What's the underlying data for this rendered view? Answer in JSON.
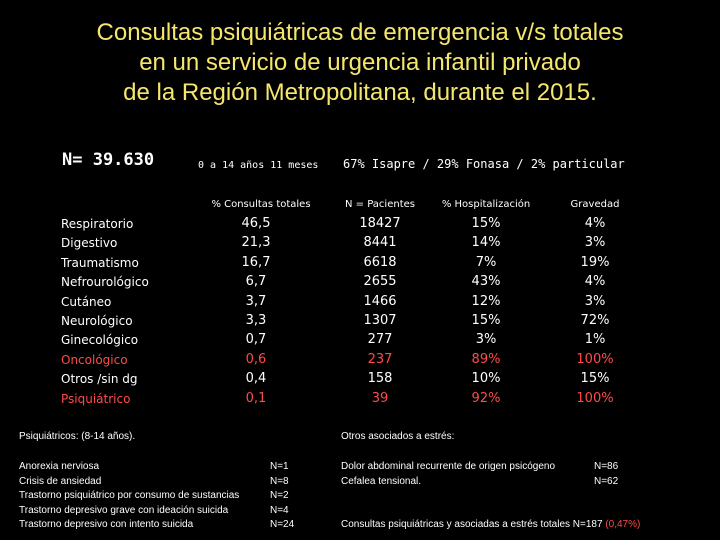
{
  "title": {
    "line1": "Consultas psiquiátricas de emergencia v/s totales",
    "line2": "en un servicio de urgencia infantil privado",
    "line3": "de la Región Metropolitana, durante el 2015."
  },
  "summary": {
    "n_total": "N= 39.630",
    "age_range": "0 a 14 años 11 meses",
    "insurance": "67% Isapre / 29% Fonasa / 2% particular"
  },
  "table": {
    "headers": [
      "% Consultas totales",
      "N = Pacientes",
      "% Hospitalización",
      "Gravedad"
    ],
    "rows": [
      {
        "category": "Respiratorio",
        "pct": "46,5",
        "n": "18427",
        "hosp": "15%",
        "grav": "4%",
        "red": false
      },
      {
        "category": "Digestivo",
        "pct": "21,3",
        "n": "8441",
        "hosp": "14%",
        "grav": "3%",
        "red": false
      },
      {
        "category": "Traumatismo",
        "pct": "16,7",
        "n": "6618",
        "hosp": "7%",
        "grav": "19%",
        "red": false
      },
      {
        "category": "Nefrourológico",
        "pct": "6,7",
        "n": "2655",
        "hosp": "43%",
        "grav": "4%",
        "red": false
      },
      {
        "category": "Cutáneo",
        "pct": "3,7",
        "n": "1466",
        "hosp": "12%",
        "grav": "3%",
        "red": false
      },
      {
        "category": "Neurológico",
        "pct": "3,3",
        "n": "1307",
        "hosp": "15%",
        "grav": "72%",
        "red": false
      },
      {
        "category": "Ginecológico",
        "pct": "0,7",
        "n": "277",
        "hosp": "3%",
        "grav": "1%",
        "red": false
      },
      {
        "category": "Oncológico",
        "pct": "0,6",
        "n": "237",
        "hosp": "89%",
        "grav": "100%",
        "red": true
      },
      {
        "category": "Otros /sin dg",
        "pct": "0,4",
        "n": "158",
        "hosp": "10%",
        "grav": "15%",
        "red": false
      },
      {
        "category": "Psiquiátrico",
        "pct": "0,1",
        "n": "39",
        "hosp": "92%",
        "grav": "100%",
        "red": true
      }
    ]
  },
  "psychiatric": {
    "heading": "Psiquiátricos:   (8-14 años).",
    "items": [
      {
        "label": "Anorexia nerviosa",
        "value": "N=1"
      },
      {
        "label": "Crisis de ansiedad",
        "value": "N=8"
      },
      {
        "label": "Trastorno psiquiátrico por consumo de sustancias",
        "value": "N=2"
      },
      {
        "label": "Trastorno depresivo grave con ideación suicida",
        "value": "N=4"
      },
      {
        "label": "Trastorno depresivo con intento suicida",
        "value": "N=24"
      }
    ]
  },
  "stress": {
    "heading": "Otros asociados a estrés:",
    "items": [
      {
        "label": "Dolor abdominal recurrente de origen psicógeno",
        "value": "N=86"
      },
      {
        "label": "Cefalea tensional.",
        "value": "N=62"
      }
    ],
    "total_label": "Consultas psiquiátricas y asociadas a estrés totales  N=187",
    "total_pct": "(0,47%)"
  }
}
